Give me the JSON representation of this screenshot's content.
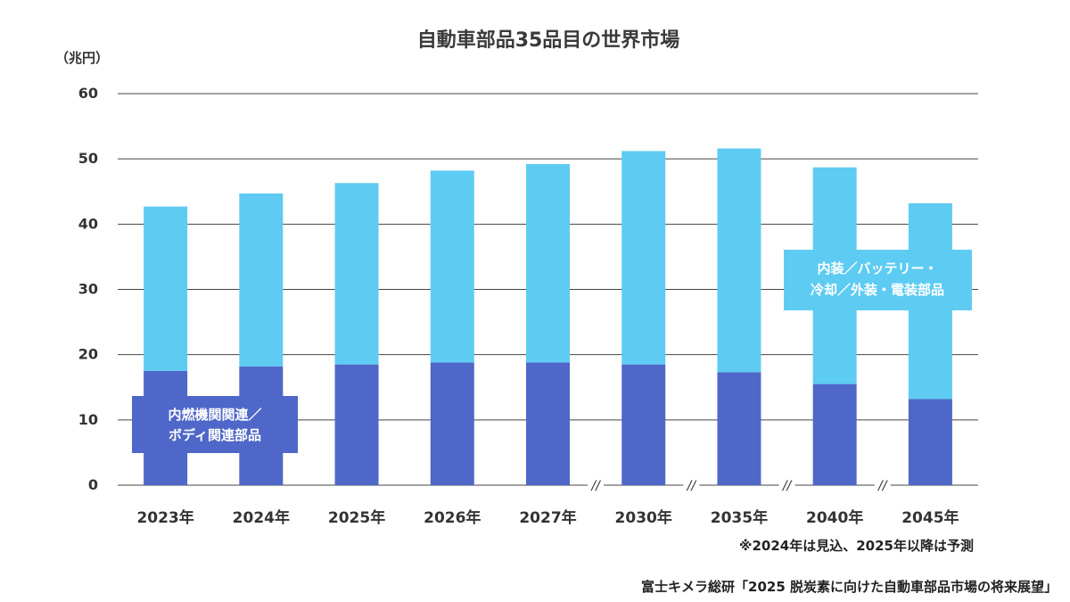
{
  "chart_data": {
    "type": "bar",
    "stacked": true,
    "title": "自動車部品35品目の世界市場",
    "unit_label": "（兆円）",
    "categories": [
      "2023年",
      "2024年",
      "2025年",
      "2026年",
      "2027年",
      "2030年",
      "2035年",
      "2040年",
      "2045年"
    ],
    "axis_breaks_after": [
      "2027年",
      "2030年",
      "2035年",
      "2040年"
    ],
    "break_symbol": "//",
    "ylim": [
      0,
      60
    ],
    "yticks": [
      0,
      10,
      20,
      30,
      40,
      50,
      60
    ],
    "grid": true,
    "series": [
      {
        "name_lines": [
          "内燃機関関連／",
          "ボディ関連部品"
        ],
        "color": "#4f67c8",
        "values": [
          17.5,
          18.2,
          18.5,
          18.8,
          18.8,
          18.5,
          17.3,
          15.5,
          13.2
        ]
      },
      {
        "name_lines": [
          "内装／バッテリー・",
          "冷却／外装・電装部品"
        ],
        "color": "#5ecbf2",
        "values": [
          25.2,
          26.5,
          27.8,
          29.4,
          30.4,
          32.7,
          34.3,
          33.2,
          30.0
        ]
      }
    ],
    "note": "※2024年は見込、2025年以降は予測",
    "source": "富士キメラ総研「2025 脱炭素に向けた自動車部品市場の将来展望」"
  }
}
